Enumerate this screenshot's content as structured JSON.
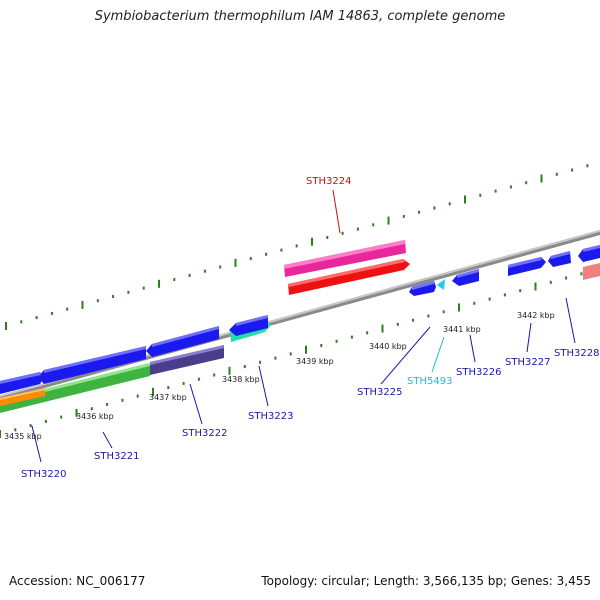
{
  "title": "Symbiobacterium thermophilum IAM 14863, complete genome",
  "footer": {
    "accession": "Accession: NC_006177",
    "topology": "Topology: circular; Length: 3,566,135 bp; Genes: 3,455"
  },
  "colors": {
    "backbone": "#888888",
    "ticks": "#2e7d1e",
    "label_blue": "#1a1aa8",
    "label_red": "#cc1111",
    "label_cyan": "#22b8d8"
  },
  "ruler_labels": [
    "3435 kbp",
    "3436 kbp",
    "3437 kbp",
    "3438 kbp",
    "3439 kbp",
    "3440 kbp",
    "3441 kbp",
    "3442 kbp"
  ],
  "gene_labels": [
    {
      "id": "STH3220",
      "text": "STH3220",
      "color": "#1a1aa8"
    },
    {
      "id": "STH3221",
      "text": "STH3221",
      "color": "#1a1aa8"
    },
    {
      "id": "STH3222",
      "text": "STH3222",
      "color": "#1a1aa8"
    },
    {
      "id": "STH3223",
      "text": "STH3223",
      "color": "#1a1aa8"
    },
    {
      "id": "STH3224",
      "text": "STH3224",
      "color": "#cc1111"
    },
    {
      "id": "STH3225",
      "text": "STH3225",
      "color": "#1a1aa8"
    },
    {
      "id": "STH5493",
      "text": "STH5493",
      "color": "#22b8d8"
    },
    {
      "id": "STH3226",
      "text": "STH3226",
      "color": "#1a1aa8"
    },
    {
      "id": "STH3227",
      "text": "STH3227",
      "color": "#1a1aa8"
    },
    {
      "id": "STH3228",
      "text": "STH3228",
      "color": "#1a1aa8"
    }
  ]
}
